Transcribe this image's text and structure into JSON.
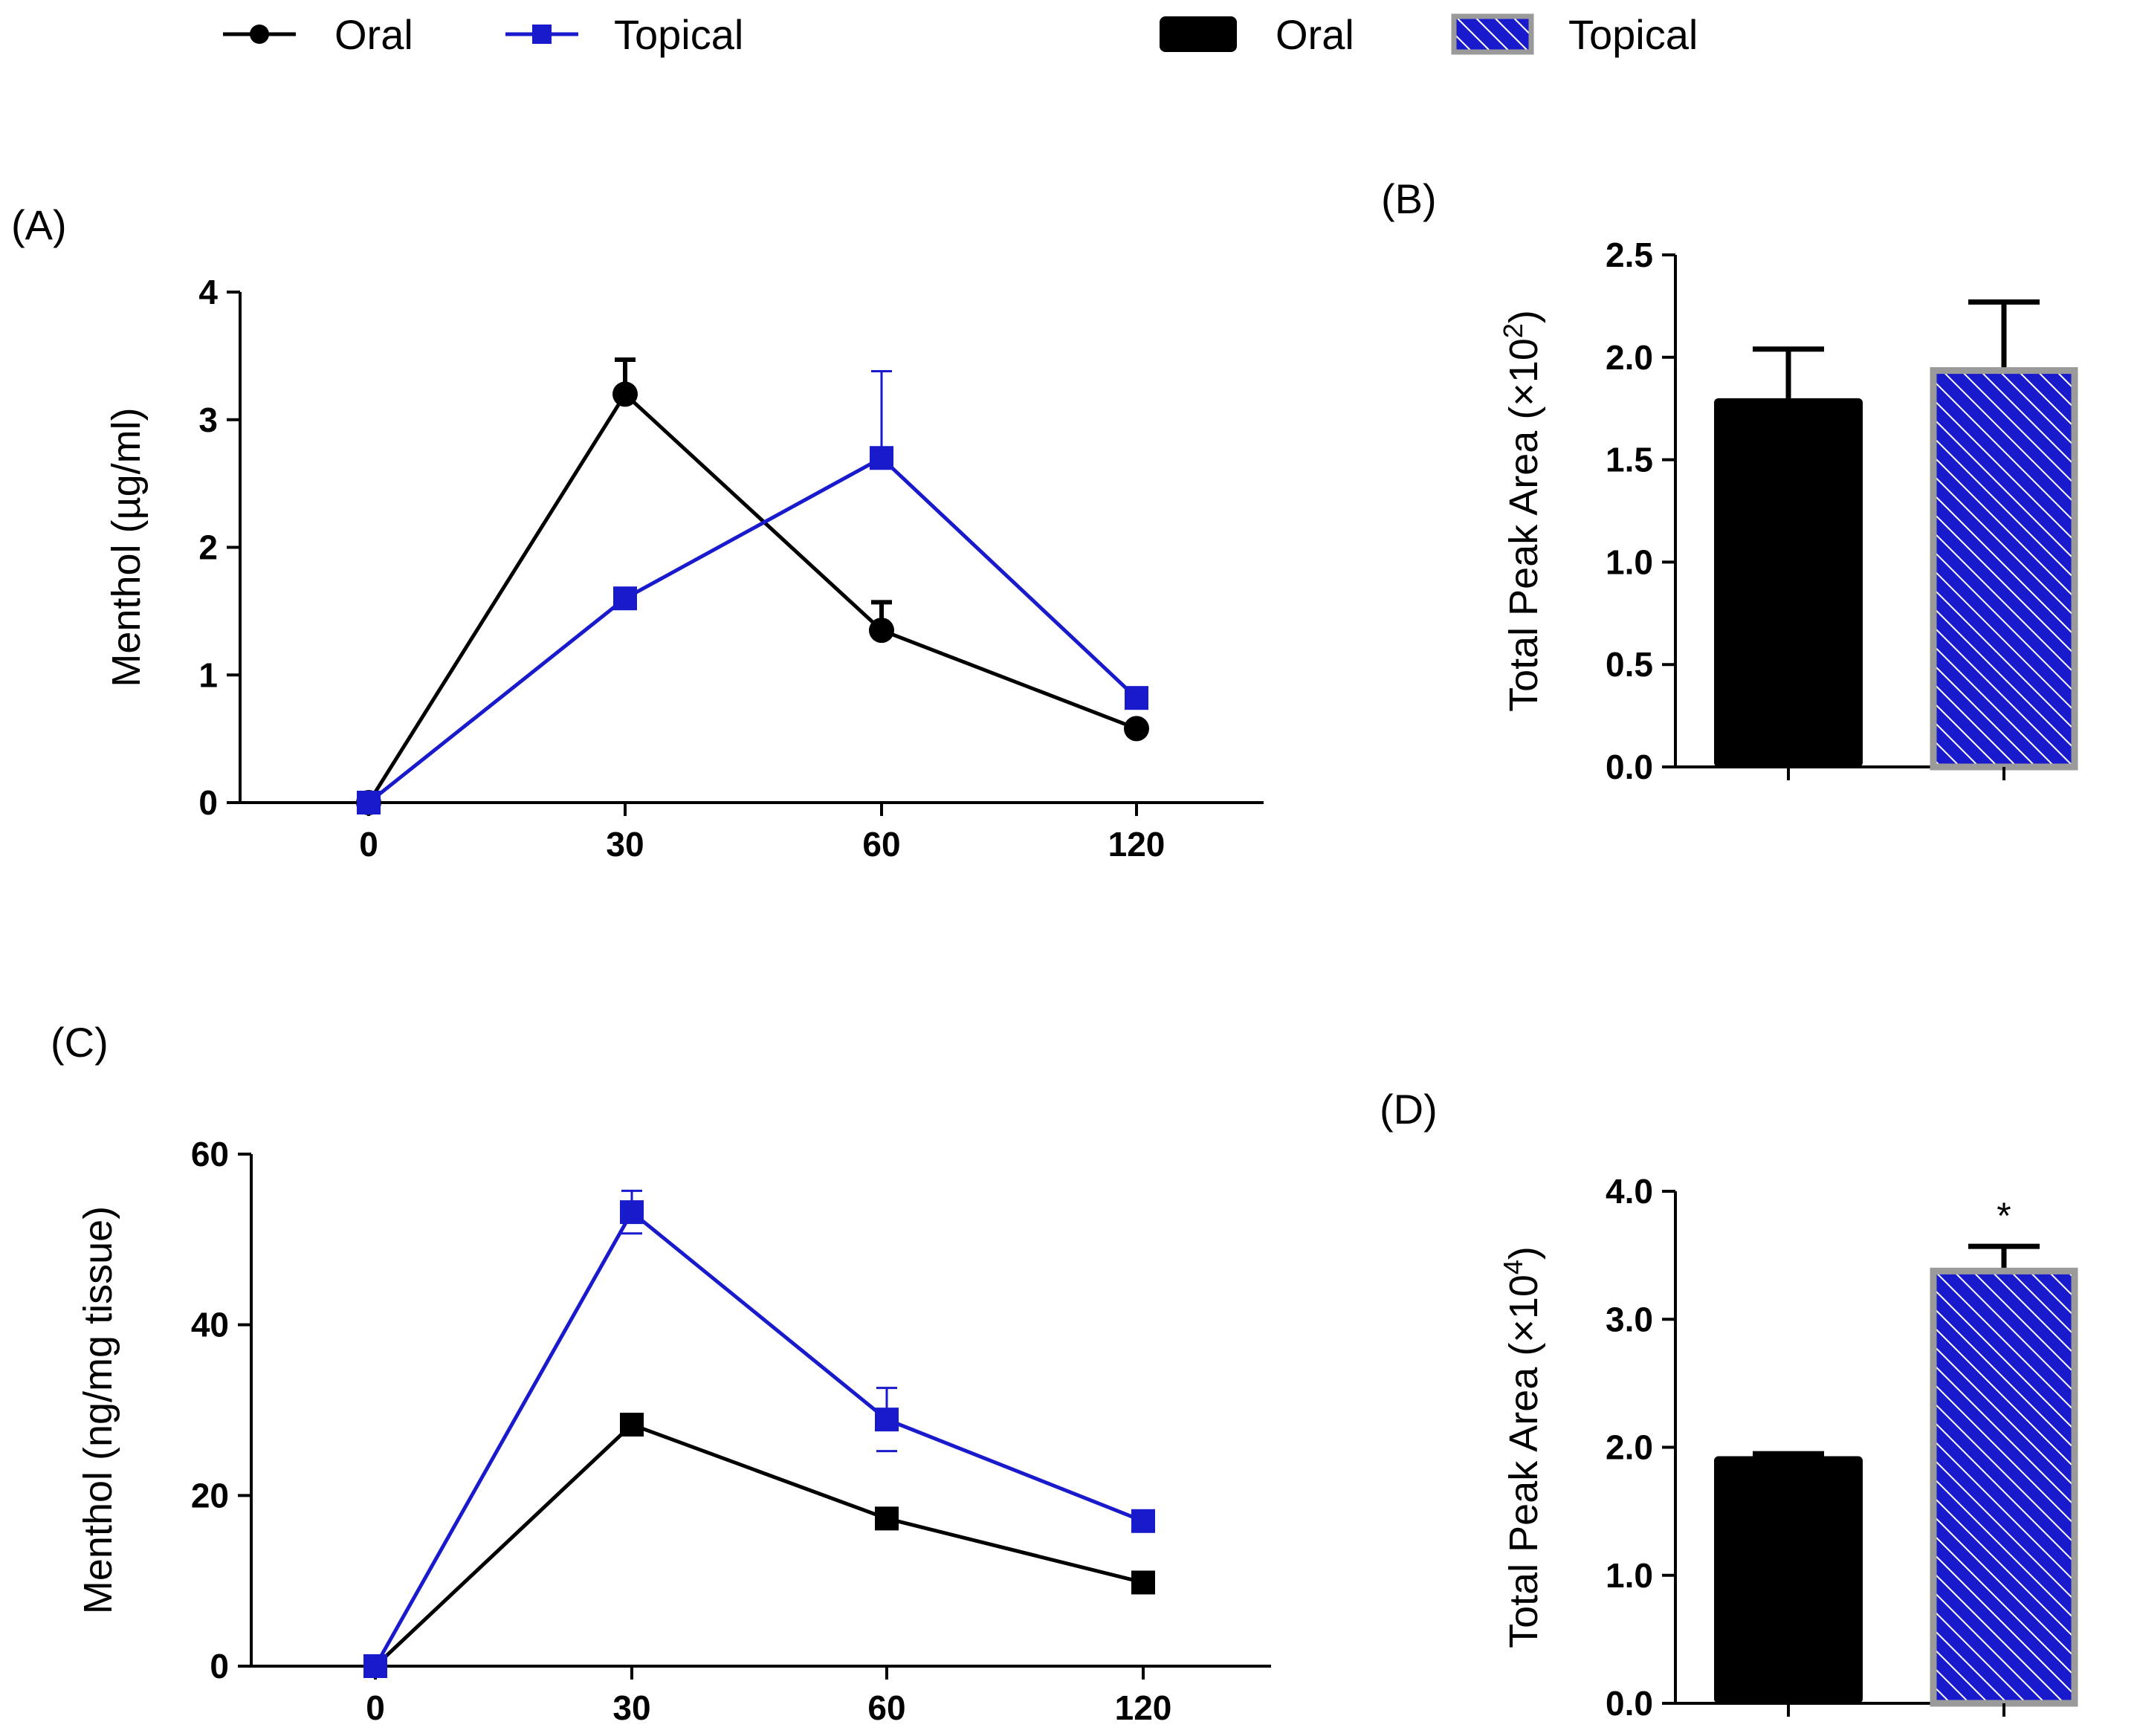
{
  "colors": {
    "oral": "#000000",
    "topical": "#1a1acd",
    "topical_bar_border": "#9a9a9a",
    "hatch": "#ffffff"
  },
  "legend": {
    "line_oral": "Oral",
    "line_topical": "Topical",
    "bar_oral": "Oral",
    "bar_topical": "Topical"
  },
  "chart_data": [
    {
      "panel": "(A)",
      "type": "line",
      "xlabel": "",
      "ylabel": "Menthol (µg/ml)",
      "categories": [
        "0",
        "30",
        "60",
        "120"
      ],
      "ylim": [
        0,
        4
      ],
      "yticks": [
        "0",
        "1",
        "2",
        "3",
        "4"
      ],
      "series": [
        {
          "name": "Oral",
          "marker": "circle",
          "values": [
            0,
            3.2,
            1.35,
            0.58
          ],
          "errors": [
            0,
            0.27,
            0.22,
            0.04
          ]
        },
        {
          "name": "Topical",
          "marker": "square",
          "values": [
            0,
            1.6,
            2.7,
            0.82
          ],
          "errors": [
            0,
            0.04,
            0.68,
            0.04
          ]
        }
      ]
    },
    {
      "panel": "(B)",
      "type": "bar",
      "ylabel": "Total Peak Area (×10",
      "ylabel_exp": "2",
      "ylabel_close": ")",
      "categories": [
        "Oral",
        "Topical"
      ],
      "values": [
        1.8,
        1.95
      ],
      "errors": [
        0.24,
        0.32
      ],
      "ylim": [
        0,
        2.5
      ],
      "yticks": [
        "0.0",
        "0.5",
        "1.0",
        "1.5",
        "2.0",
        "2.5"
      ],
      "annotations": [
        "",
        ""
      ]
    },
    {
      "panel": "(C)",
      "type": "line",
      "xlabel": "",
      "ylabel": "Menthol (ng/mg tissue)",
      "categories": [
        "0",
        "30",
        "60",
        "120"
      ],
      "ylim": [
        0,
        60
      ],
      "yticks": [
        "0",
        "20",
        "40",
        "60"
      ],
      "series": [
        {
          "name": "Oral",
          "marker": "square",
          "values": [
            0,
            28.3,
            17.3,
            9.8
          ],
          "errors": [
            0,
            0.5,
            0.5,
            0.4
          ]
        },
        {
          "name": "Topical",
          "marker": "square",
          "values": [
            0,
            53.2,
            28.9,
            17
          ],
          "errors": [
            0,
            2.5,
            3.7,
            0.5
          ]
        }
      ]
    },
    {
      "panel": "(D)",
      "type": "bar",
      "ylabel": "Total Peak Area (×10",
      "ylabel_exp": "4",
      "ylabel_close": ")",
      "categories": [
        "Oral",
        "Topical"
      ],
      "values": [
        1.93,
        3.4
      ],
      "errors": [
        0.02,
        0.17
      ],
      "ylim": [
        0,
        4
      ],
      "yticks": [
        "0.0",
        "1.0",
        "2.0",
        "3.0",
        "4.0"
      ],
      "annotations": [
        "",
        "*"
      ]
    }
  ]
}
